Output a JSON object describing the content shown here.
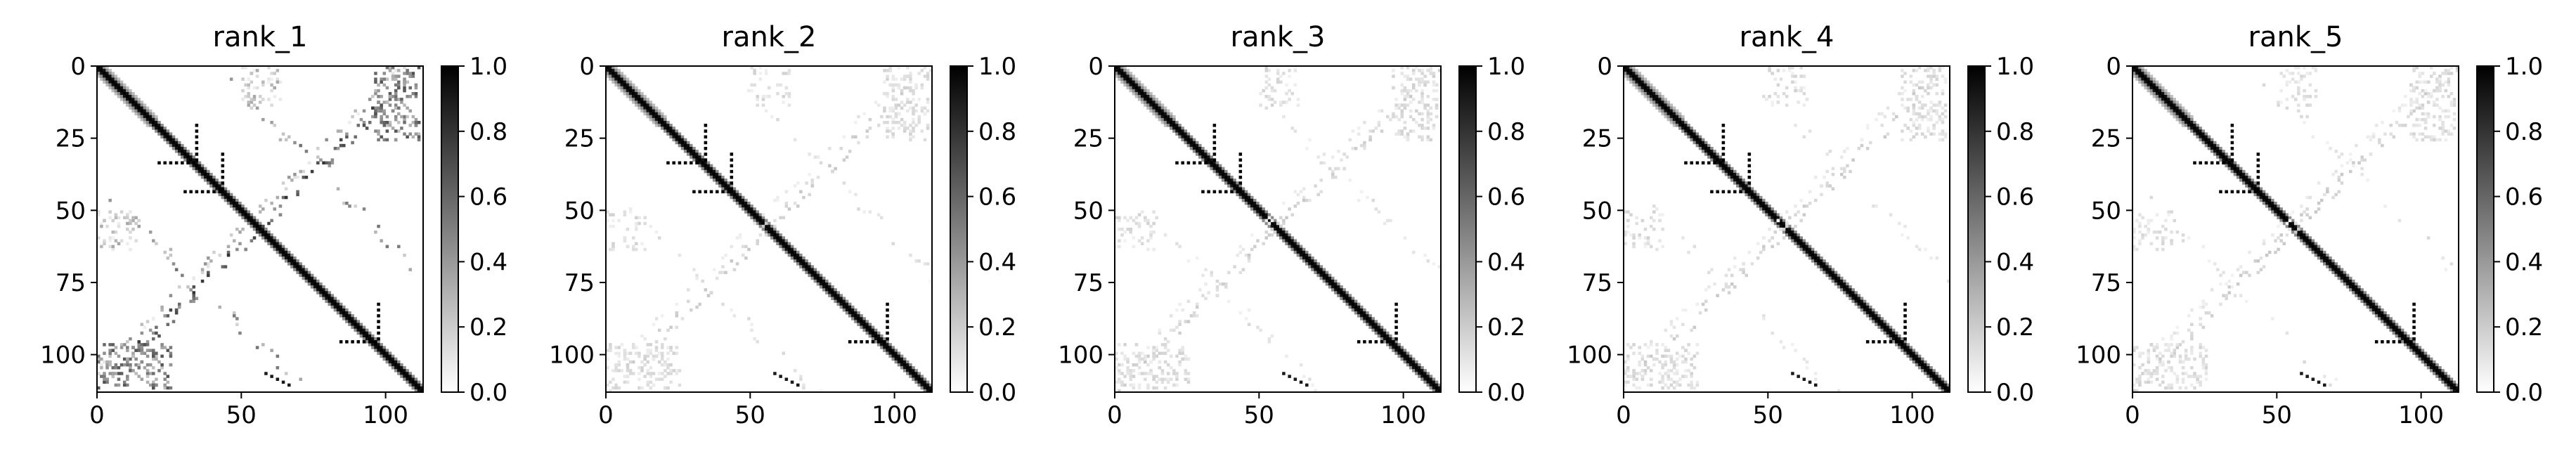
{
  "chart_data": [
    {
      "type": "heatmap",
      "title": "rank_1",
      "matrix_size": 113,
      "xlim": [
        0,
        113
      ],
      "ylim": [
        113,
        0
      ],
      "y_inverted": true,
      "xticks": [
        0,
        50,
        100
      ],
      "yticks": [
        0,
        25,
        50,
        75,
        100
      ],
      "colormap": "gray_r",
      "value_range": [
        0.0,
        1.0
      ],
      "colorbar_ticks": [
        "0.0",
        "0.2",
        "0.4",
        "0.6",
        "0.8",
        "1.0"
      ]
    },
    {
      "type": "heatmap",
      "title": "rank_2",
      "matrix_size": 113,
      "xlim": [
        0,
        113
      ],
      "ylim": [
        113,
        0
      ],
      "y_inverted": true,
      "xticks": [
        0,
        50,
        100
      ],
      "yticks": [
        0,
        25,
        50,
        75,
        100
      ],
      "colormap": "gray_r",
      "value_range": [
        0.0,
        1.0
      ],
      "colorbar_ticks": [
        "0.0",
        "0.2",
        "0.4",
        "0.6",
        "0.8",
        "1.0"
      ]
    },
    {
      "type": "heatmap",
      "title": "rank_3",
      "matrix_size": 113,
      "xlim": [
        0,
        113
      ],
      "ylim": [
        113,
        0
      ],
      "y_inverted": true,
      "xticks": [
        0,
        50,
        100
      ],
      "yticks": [
        0,
        25,
        50,
        75,
        100
      ],
      "colormap": "gray_r",
      "value_range": [
        0.0,
        1.0
      ],
      "colorbar_ticks": [
        "0.0",
        "0.2",
        "0.4",
        "0.6",
        "0.8",
        "1.0"
      ]
    },
    {
      "type": "heatmap",
      "title": "rank_4",
      "matrix_size": 113,
      "xlim": [
        0,
        113
      ],
      "ylim": [
        113,
        0
      ],
      "y_inverted": true,
      "xticks": [
        0,
        50,
        100
      ],
      "yticks": [
        0,
        25,
        50,
        75,
        100
      ],
      "colormap": "gray_r",
      "value_range": [
        0.0,
        1.0
      ],
      "colorbar_ticks": [
        "0.0",
        "0.2",
        "0.4",
        "0.6",
        "0.8",
        "1.0"
      ]
    },
    {
      "type": "heatmap",
      "title": "rank_5",
      "matrix_size": 113,
      "xlim": [
        0,
        113
      ],
      "ylim": [
        113,
        0
      ],
      "y_inverted": true,
      "xticks": [
        0,
        50,
        100
      ],
      "yticks": [
        0,
        25,
        50,
        75,
        100
      ],
      "colormap": "gray_r",
      "value_range": [
        0.0,
        1.0
      ],
      "colorbar_ticks": [
        "0.0",
        "0.2",
        "0.4",
        "0.6",
        "0.8",
        "1.0"
      ]
    }
  ]
}
